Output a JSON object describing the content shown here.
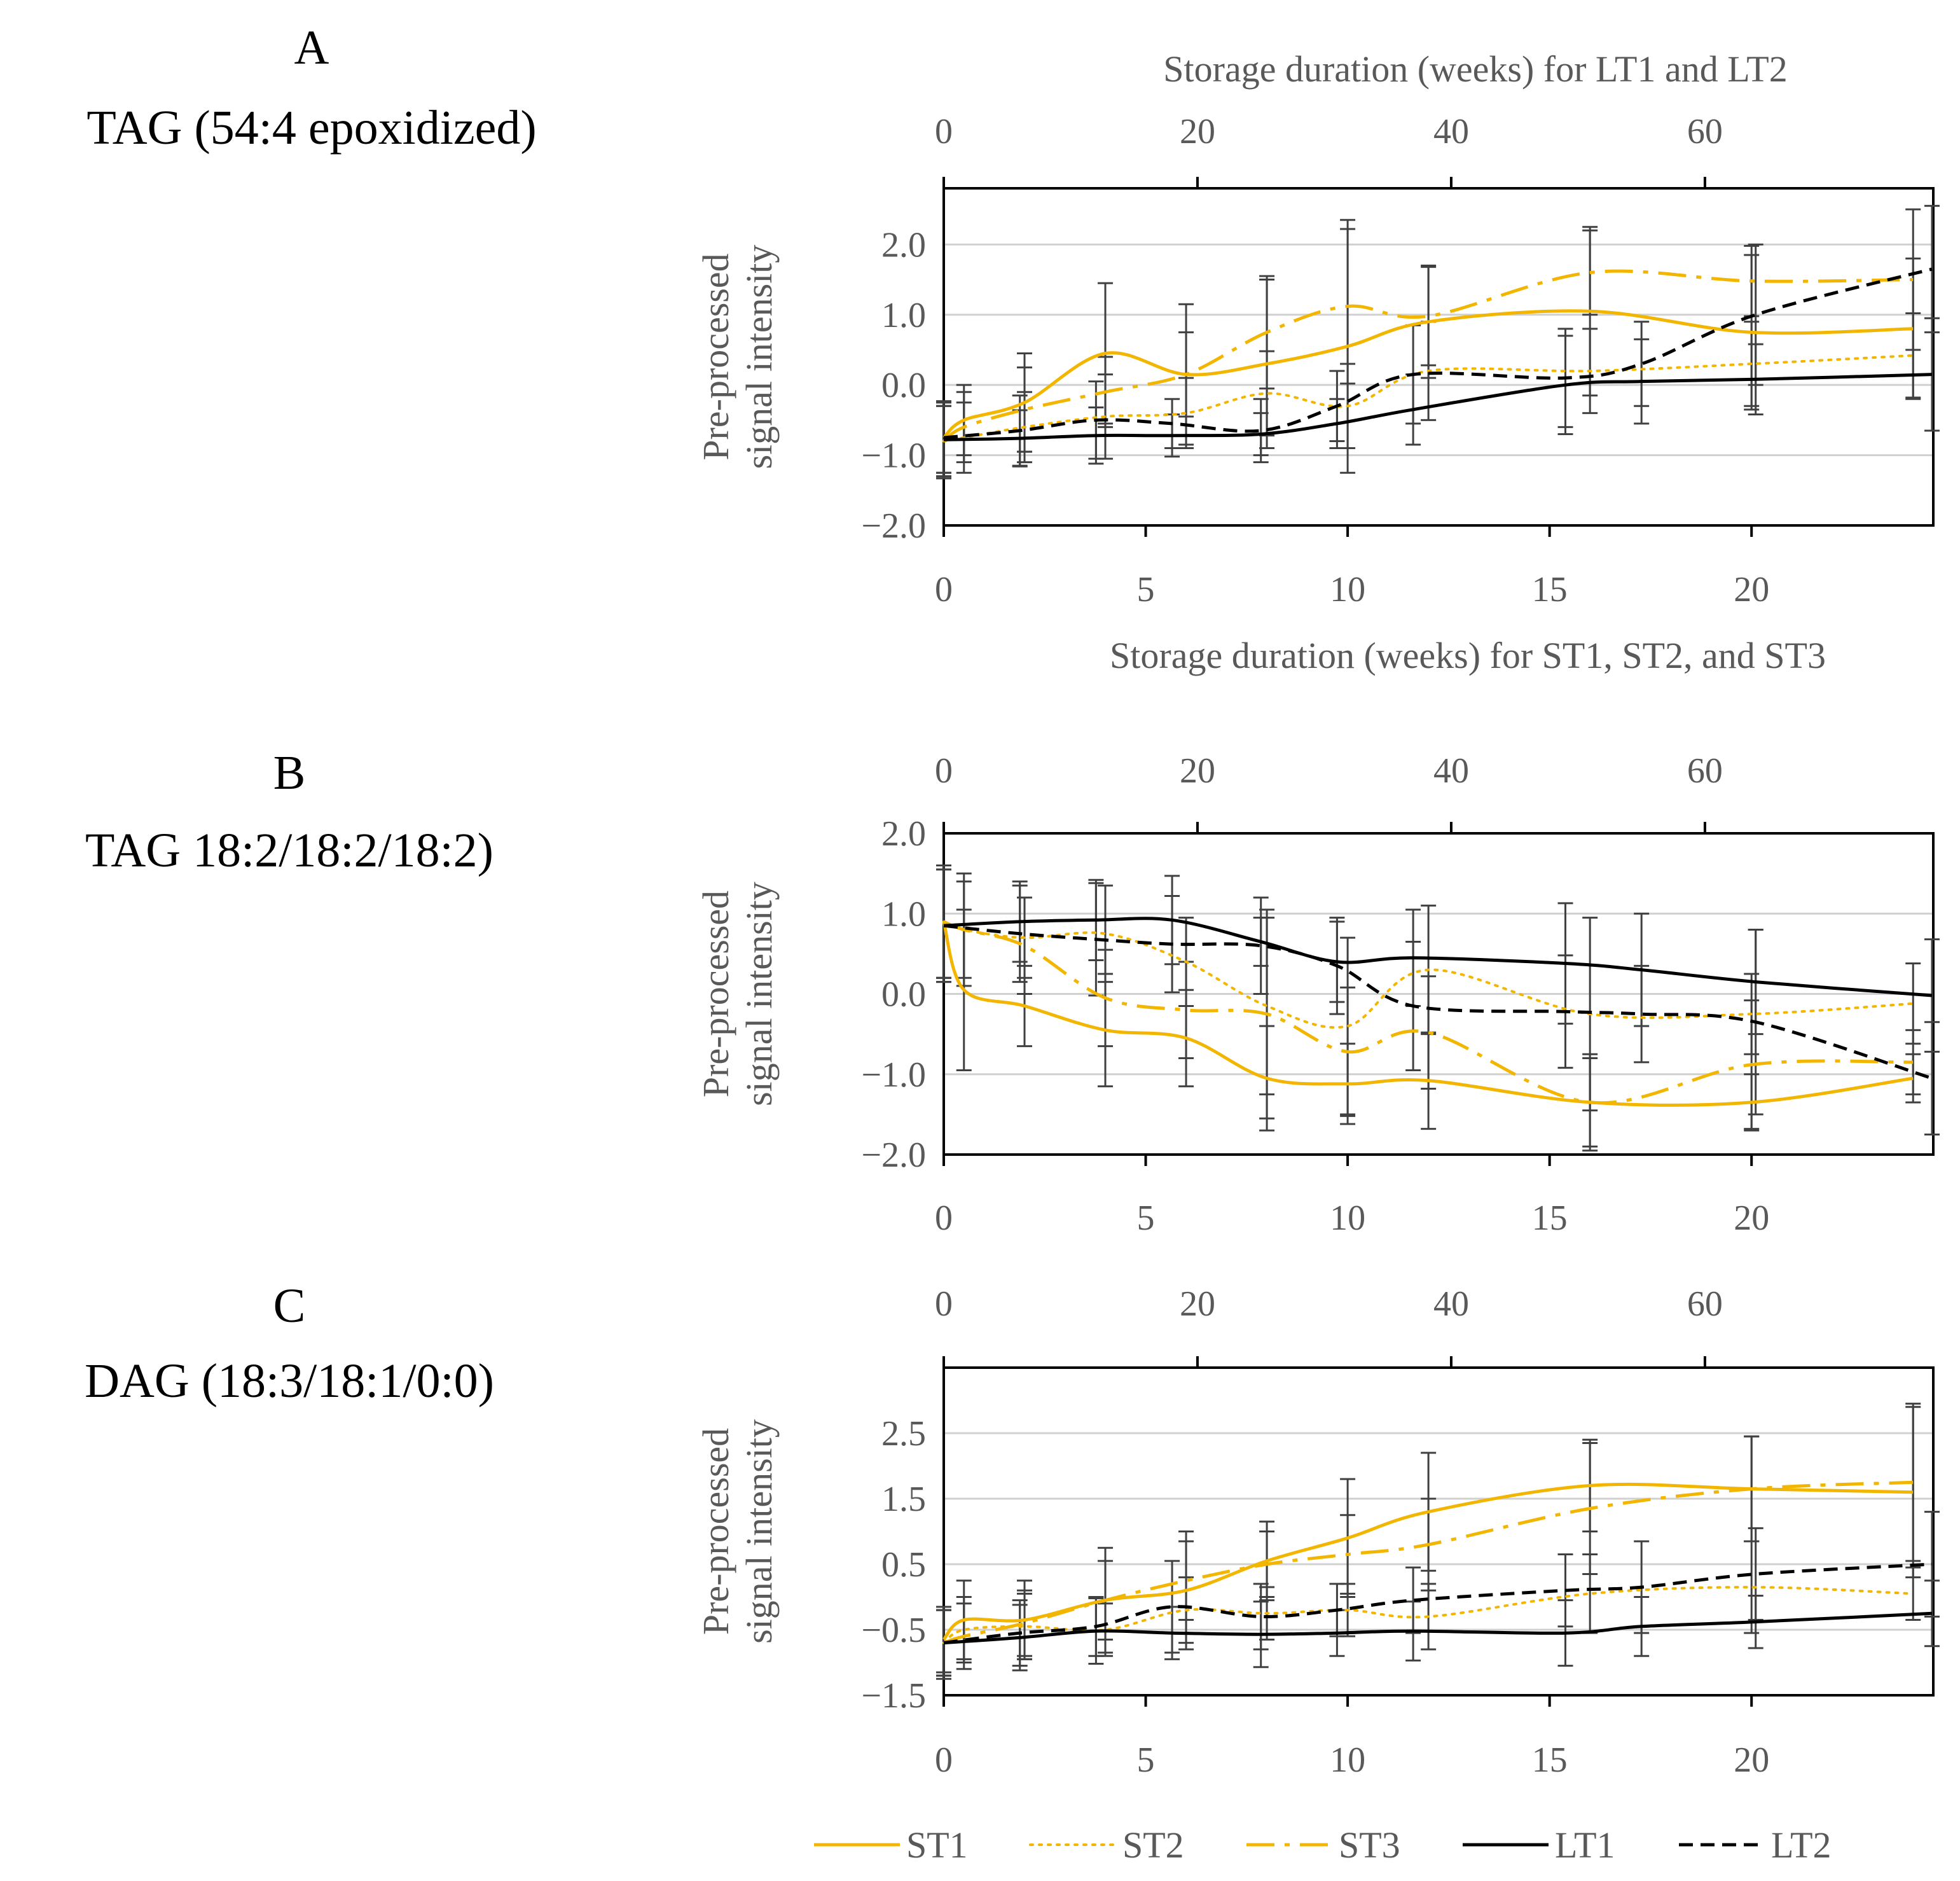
{
  "chart_data": {
    "type": "line",
    "colors": {
      "st_color": "#F2B600",
      "lt_color": "#000000",
      "error_bar": "#404040",
      "grid": "#D0D0D0",
      "axis_text": "#595959"
    },
    "top_axis_title": "Storage duration (weeks) for LT1 and LT2",
    "bottom_axis_title": "Storage duration (weeks) for ST1, ST2, and ST3",
    "top_xlim": [
      0,
      78
    ],
    "top_ticks": [
      0,
      20,
      40,
      60
    ],
    "bottom_xlim": [
      0,
      24.5
    ],
    "bottom_ticks": [
      0,
      5,
      10,
      15,
      20
    ],
    "legend": [
      {
        "name": "ST1",
        "style": "solid",
        "color": "#F2B600"
      },
      {
        "name": "ST2",
        "style": "dotted",
        "color": "#F2B600"
      },
      {
        "name": "ST3",
        "style": "dashdot",
        "color": "#F2B600"
      },
      {
        "name": "LT1",
        "style": "solid",
        "color": "#000000"
      },
      {
        "name": "LT2",
        "style": "dashed",
        "color": "#000000"
      }
    ],
    "panels": [
      {
        "letter": "A",
        "name": "TAG (54:4 epoxidized)",
        "ylabel_line1": "Pre-processed",
        "ylabel_line2": "signal intensity",
        "ylim": [
          -2.0,
          2.8
        ],
        "yticks": [
          -2.0,
          -1.0,
          0.0,
          1.0,
          2.0
        ],
        "ytick_labels": [
          "−2.0",
          "−1.0",
          "0.0",
          "1.0",
          "2.0"
        ],
        "show_top_axis_title": true,
        "show_bottom_axis_title": true,
        "series": [
          {
            "name": "ST1",
            "style": "solid",
            "axis": "bottom",
            "x": [
              0,
              0.5,
              2,
              4,
              6,
              8,
              10,
              12,
              16,
              20,
              24
            ],
            "y": [
              -0.75,
              -0.5,
              -0.25,
              0.45,
              0.15,
              0.3,
              0.55,
              0.9,
              1.05,
              0.75,
              0.8
            ],
            "err": [
              0.5,
              0.5,
              0.7,
              1.0,
              1.0,
              1.2,
              1.8,
              0.8,
              1.2,
              1.1,
              1.0
            ]
          },
          {
            "name": "ST2",
            "style": "dotted",
            "axis": "bottom",
            "x": [
              0,
              0.5,
              2,
              4,
              6,
              8,
              10,
              12,
              16,
              20,
              24
            ],
            "y": [
              -0.8,
              -0.75,
              -0.6,
              -0.45,
              -0.4,
              -0.12,
              -0.3,
              0.2,
              0.2,
              0.3,
              0.42
            ],
            "err": [
              0.5,
              0.5,
              0.5,
              0.6,
              0.5,
              0.6,
              0.6,
              0.7,
              0.6,
              0.6,
              0.6
            ]
          },
          {
            "name": "ST3",
            "style": "dashdot",
            "axis": "bottom",
            "x": [
              0,
              0.5,
              2,
              4,
              6,
              8,
              10,
              12,
              16,
              20,
              24
            ],
            "y": [
              -0.8,
              -0.6,
              -0.35,
              -0.1,
              0.15,
              0.75,
              1.12,
              0.98,
              1.6,
              1.48,
              1.5
            ],
            "err": [
              0.5,
              0.5,
              0.6,
              0.5,
              0.6,
              0.8,
              1.1,
              0.7,
              0.6,
              0.5,
              1.0
            ]
          },
          {
            "name": "LT1",
            "style": "solid",
            "axis": "top",
            "x": [
              0,
              6,
              12,
              18,
              25,
              31,
              37,
              49,
              55,
              64,
              78
            ],
            "y": [
              -0.78,
              -0.76,
              -0.72,
              -0.72,
              -0.7,
              -0.55,
              -0.35,
              0.0,
              0.05,
              0.08,
              0.15
            ],
            "err": [
              0.55,
              0.4,
              0.4,
              0.3,
              0.3,
              0.35,
              0.5,
              0.7,
              0.6,
              0.5,
              0.8
            ]
          },
          {
            "name": "LT2",
            "style": "dashed",
            "axis": "top",
            "x": [
              0,
              6,
              12,
              18,
              25,
              31,
              37,
              49,
              55,
              64,
              78
            ],
            "y": [
              -0.75,
              -0.65,
              -0.5,
              -0.55,
              -0.65,
              -0.3,
              0.15,
              0.1,
              0.3,
              1.0,
              1.65
            ],
            "err": [
              0.5,
              0.5,
              0.55,
              0.35,
              0.45,
              0.5,
              0.7,
              0.7,
              0.6,
              1.0,
              0.9
            ]
          }
        ]
      },
      {
        "letter": "B",
        "name": "TAG 18:2/18:2/18:2)",
        "ylabel_line1": "Pre-processed",
        "ylabel_line2": "signal intensity",
        "ylim": [
          -2.0,
          2.0
        ],
        "yticks": [
          -2.0,
          -1.0,
          0.0,
          1.0,
          2.0
        ],
        "ytick_labels": [
          "−2.0",
          "−1.0",
          "0.0",
          "1.0",
          "2.0"
        ],
        "show_top_axis_title": false,
        "show_bottom_axis_title": false,
        "series": [
          {
            "name": "ST1",
            "style": "solid",
            "axis": "bottom",
            "x": [
              0,
              0.5,
              2,
              4,
              6,
              8,
              10,
              12,
              16,
              20,
              24
            ],
            "y": [
              0.9,
              0.05,
              -0.15,
              -0.45,
              -0.55,
              -1.05,
              -1.12,
              -1.08,
              -1.35,
              -1.35,
              -1.05
            ],
            "err": [
              0.7,
              1.0,
              0.5,
              0.7,
              0.6,
              0.65,
              0.5,
              0.6,
              0.55,
              0.35,
              0.3
            ]
          },
          {
            "name": "ST2",
            "style": "dotted",
            "axis": "bottom",
            "x": [
              0,
              0.5,
              2,
              4,
              6,
              8,
              10,
              12,
              16,
              20,
              24
            ],
            "y": [
              0.9,
              0.8,
              0.7,
              0.75,
              0.4,
              -0.15,
              -0.4,
              0.3,
              -0.25,
              -0.25,
              -0.12
            ],
            "err": [
              0.7,
              0.7,
              0.5,
              0.6,
              0.55,
              1.1,
              1.1,
              0.8,
              1.2,
              0.5,
              0.5
            ]
          },
          {
            "name": "ST3",
            "style": "dashdot",
            "axis": "bottom",
            "x": [
              0,
              0.5,
              2,
              4,
              6,
              8,
              10,
              12,
              16,
              20,
              24
            ],
            "y": [
              0.9,
              0.8,
              0.6,
              -0.05,
              -0.2,
              -0.25,
              -0.72,
              -0.48,
              -1.35,
              -0.88,
              -0.85
            ],
            "err": [
              0.7,
              0.6,
              0.6,
              0.6,
              0.6,
              1.3,
              0.8,
              0.7,
              0.6,
              0.8,
              0.4
            ]
          },
          {
            "name": "LT1",
            "style": "solid",
            "axis": "top",
            "x": [
              0,
              6,
              12,
              18,
              25,
              31,
              37,
              49,
              55,
              64,
              78
            ],
            "y": [
              0.85,
              0.9,
              0.92,
              0.92,
              0.65,
              0.4,
              0.45,
              0.38,
              0.3,
              0.15,
              -0.02
            ],
            "err": [
              0.7,
              0.5,
              0.5,
              0.55,
              0.3,
              0.5,
              0.6,
              0.75,
              0.7,
              0.65,
              0.7
            ]
          },
          {
            "name": "LT2",
            "style": "dashed",
            "axis": "top",
            "x": [
              0,
              6,
              12,
              18,
              25,
              31,
              37,
              49,
              55,
              64,
              78
            ],
            "y": [
              0.85,
              0.75,
              0.68,
              0.62,
              0.6,
              0.35,
              -0.15,
              -0.22,
              -0.25,
              -0.35,
              -1.05
            ],
            "err": [
              0.7,
              0.6,
              0.7,
              0.6,
              0.6,
              0.6,
              0.8,
              0.7,
              0.6,
              1.15,
              0.7
            ]
          }
        ]
      },
      {
        "letter": "C",
        "name": "DAG (18:3/18:1/0:0)",
        "ylabel_line1": "Pre-processed",
        "ylabel_line2": "signal intensity",
        "ylim": [
          -1.5,
          3.5
        ],
        "yticks": [
          -1.5,
          -0.5,
          0.5,
          1.5,
          2.5
        ],
        "ytick_labels": [
          "−1.5",
          "−0.5",
          "0.5",
          "1.5",
          "2.5"
        ],
        "show_top_axis_title": false,
        "show_bottom_axis_title": false,
        "series": [
          {
            "name": "ST1",
            "style": "solid",
            "axis": "bottom",
            "x": [
              0,
              0.5,
              2,
              4,
              6,
              8,
              10,
              12,
              16,
              20,
              24
            ],
            "y": [
              -0.65,
              -0.35,
              -0.35,
              -0.05,
              0.1,
              0.55,
              0.9,
              1.3,
              1.7,
              1.65,
              1.6
            ],
            "err": [
              0.5,
              0.6,
              0.6,
              0.8,
              0.9,
              0.6,
              0.9,
              0.9,
              0.7,
              0.8,
              1.3
            ]
          },
          {
            "name": "ST2",
            "style": "dotted",
            "axis": "bottom",
            "x": [
              0,
              0.5,
              2,
              4,
              6,
              8,
              10,
              12,
              16,
              20,
              24
            ],
            "y": [
              -0.7,
              -0.5,
              -0.45,
              -0.5,
              -0.2,
              -0.25,
              -0.2,
              -0.3,
              0.05,
              0.15,
              0.05
            ],
            "err": [
              0.5,
              0.5,
              0.5,
              0.4,
              0.5,
              0.4,
              0.4,
              0.5,
              0.6,
              0.7,
              0.4
            ]
          },
          {
            "name": "ST3",
            "style": "dashdot",
            "axis": "bottom",
            "x": [
              0,
              0.5,
              2,
              4,
              6,
              8,
              10,
              12,
              16,
              20,
              24
            ],
            "y": [
              -0.7,
              -0.6,
              -0.4,
              -0.05,
              0.25,
              0.5,
              0.65,
              0.8,
              1.35,
              1.65,
              1.75
            ],
            "err": [
              0.5,
              0.5,
              0.5,
              0.6,
              0.6,
              0.5,
              0.6,
              0.7,
              1.0,
              0.8,
              1.2
            ]
          },
          {
            "name": "LT1",
            "style": "solid",
            "axis": "top",
            "x": [
              0,
              6,
              12,
              18,
              25,
              31,
              37,
              49,
              55,
              64,
              78
            ],
            "y": [
              -0.7,
              -0.62,
              -0.52,
              -0.55,
              -0.57,
              -0.55,
              -0.52,
              -0.55,
              -0.45,
              -0.38,
              -0.25
            ],
            "err": [
              0.55,
              0.5,
              0.5,
              0.4,
              0.5,
              0.35,
              0.45,
              0.5,
              0.45,
              0.4,
              0.5
            ]
          },
          {
            "name": "LT2",
            "style": "dashed",
            "axis": "top",
            "x": [
              0,
              6,
              12,
              18,
              25,
              31,
              37,
              49,
              55,
              64,
              78
            ],
            "y": [
              -0.7,
              -0.55,
              -0.45,
              -0.15,
              -0.3,
              -0.2,
              -0.05,
              0.1,
              0.15,
              0.35,
              0.5
            ],
            "err": [
              0.5,
              0.5,
              0.45,
              0.7,
              0.5,
              0.4,
              0.5,
              0.55,
              0.7,
              0.7,
              0.8
            ]
          }
        ]
      }
    ]
  }
}
